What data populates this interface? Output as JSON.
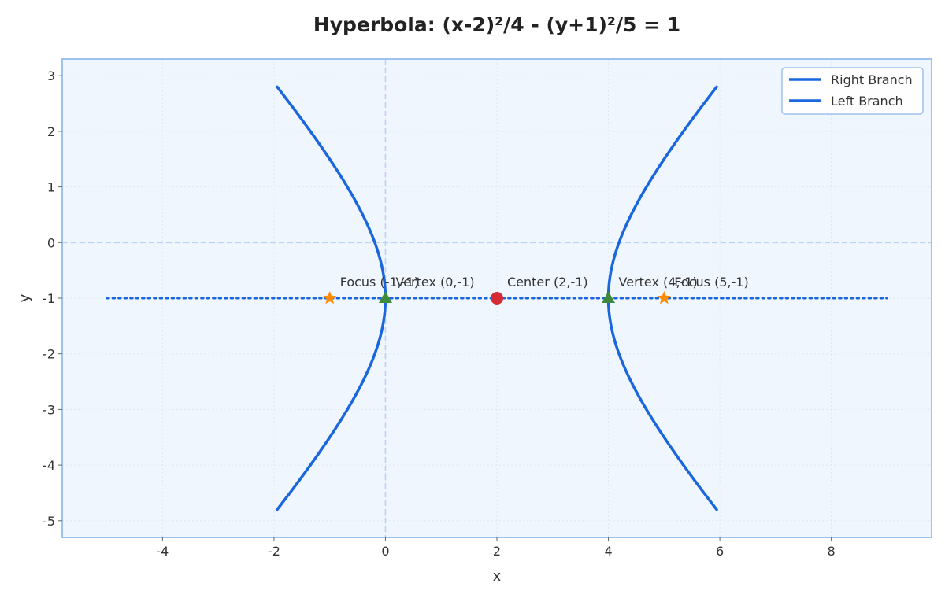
{
  "chart_data": {
    "type": "line",
    "title": "Hyperbola: (x-2)²/4 - (y+1)²/5 = 1",
    "xlabel": "x",
    "ylabel": "y",
    "xlim": [
      -5.8,
      9.8
    ],
    "ylim": [
      -5.3,
      3.3
    ],
    "xticks": [
      -4,
      -2,
      0,
      2,
      4,
      6,
      8
    ],
    "yticks": [
      -5,
      -4,
      -3,
      -2,
      -1,
      0,
      1,
      2,
      3
    ],
    "grid": true,
    "legend_position": "top-right",
    "hyperbola": {
      "h": 2,
      "k": -1,
      "a2": 4,
      "b2": 5,
      "y_range": [
        -4.8,
        2.8
      ]
    },
    "series": [
      {
        "name": "Right Branch",
        "color": "#1a66dd"
      },
      {
        "name": "Left Branch",
        "color": "#1a66dd"
      }
    ],
    "transverse_axis": {
      "y": -1,
      "x_range": [
        -5,
        9
      ],
      "color": "#1a66dd"
    },
    "reference_lines": {
      "x": 0,
      "y": 0,
      "color": "#b8d2f2"
    },
    "points": [
      {
        "kind": "focus",
        "x": -1,
        "y": -1,
        "label": "Focus (-1,-1)",
        "color": "#ff8c00"
      },
      {
        "kind": "vertex",
        "x": 0,
        "y": -1,
        "label": "Vertex (0,-1)",
        "color": "#3d8a3d"
      },
      {
        "kind": "center",
        "x": 2,
        "y": -1,
        "label": "Center (2,-1)",
        "color": "#d62a35"
      },
      {
        "kind": "vertex",
        "x": 4,
        "y": -1,
        "label": "Vertex (4,-1)",
        "color": "#3d8a3d"
      },
      {
        "kind": "focus",
        "x": 5,
        "y": -1,
        "label": "Focus (5,-1)",
        "color": "#ff8c00"
      }
    ],
    "colors": {
      "plot_background": "#f0f6fd",
      "frame": "#9ec2ee",
      "grid": "#dde7f3"
    }
  }
}
